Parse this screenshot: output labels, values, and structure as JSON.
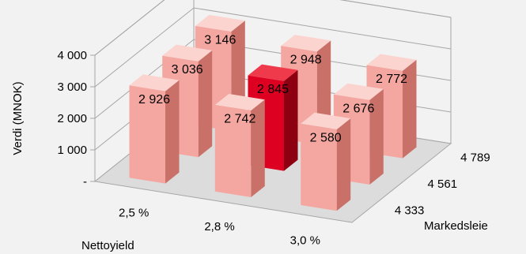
{
  "chart_data": {
    "type": "bar",
    "subtype": "3d-column",
    "ylabel": "Verdi (MNOK)",
    "xlabel": "Nettoyield",
    "zlabel": "Markedsleie",
    "ylim": [
      0,
      4000
    ],
    "yticks": [
      {
        "value": 0,
        "label": "-"
      },
      {
        "value": 1000,
        "label": "1 000"
      },
      {
        "value": 2000,
        "label": "2 000"
      },
      {
        "value": 3000,
        "label": "3 000"
      },
      {
        "value": 4000,
        "label": "4 000"
      }
    ],
    "categories": [
      "2,5 %",
      "2,8 %",
      "3,0 %"
    ],
    "series": [
      {
        "name": "4 789",
        "values": [
          3146,
          2948,
          2772
        ],
        "labels": [
          "3 146",
          "2 948",
          "2 772"
        ]
      },
      {
        "name": "4 561",
        "values": [
          3036,
          2845,
          2676
        ],
        "labels": [
          "3 036",
          "2 845",
          "2 676"
        ]
      },
      {
        "name": "4 333",
        "values": [
          2926,
          2742,
          2580
        ],
        "labels": [
          "2 926",
          "2 742",
          "2 580"
        ]
      }
    ],
    "highlight": {
      "series": 1,
      "category": 1
    },
    "grid": true,
    "legend": "none"
  },
  "colors": {
    "bar_front": "#f4a7a0",
    "bar_side": "#c97069",
    "bar_top": "#fbd3cf",
    "highlight_front": "#dd0020",
    "highlight_side": "#8c0012",
    "highlight_top": "#ee3a4a",
    "gridline": "#a6a6a6",
    "wall": "#f2f2f2",
    "floor": "#dcdcdc"
  }
}
